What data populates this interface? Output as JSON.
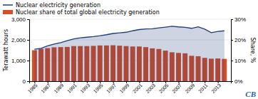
{
  "chart_data": {
    "type": "bar",
    "x": [
      1985,
      1986,
      1987,
      1988,
      1989,
      1990,
      1991,
      1992,
      1993,
      1994,
      1995,
      1996,
      1997,
      1998,
      1999,
      2000,
      2001,
      2002,
      2003,
      2004,
      2005,
      2006,
      2007,
      2008,
      2009,
      2010,
      2011,
      2012,
      2013,
      2014
    ],
    "series": [
      {
        "name": "Nuclear electricity generation",
        "type": "area",
        "color": "#1f3d7a",
        "values": [
          1550,
          1590,
          1710,
          1800,
          1870,
          1960,
          2050,
          2100,
          2130,
          2160,
          2200,
          2250,
          2310,
          2340,
          2370,
          2440,
          2500,
          2530,
          2540,
          2580,
          2620,
          2660,
          2630,
          2610,
          2560,
          2630,
          2520,
          2350,
          2410,
          2440
        ]
      },
      {
        "name": "Nuclear share of total global electricity generation",
        "type": "bar",
        "axis": "y2",
        "color": "#d44e28",
        "values": [
          15.0,
          15.7,
          16.0,
          16.4,
          16.5,
          16.6,
          17.0,
          17.0,
          17.0,
          17.1,
          17.3,
          17.3,
          17.4,
          17.2,
          17.0,
          16.8,
          16.8,
          16.5,
          15.9,
          15.6,
          14.8,
          14.0,
          13.7,
          13.5,
          12.3,
          12.1,
          11.3,
          10.9,
          11.0,
          10.8
        ]
      }
    ],
    "y_label": "Terawatt hours",
    "y2_label": "Share, %",
    "xlim": [
      1984.2,
      2015.0
    ],
    "xticks": [
      1985,
      1987,
      1989,
      1991,
      1993,
      1995,
      1997,
      1999,
      2001,
      2003,
      2005,
      2007,
      2009,
      2011,
      2013
    ],
    "ylim": [
      0,
      3000
    ],
    "yticks": [
      0,
      {
        "value": 1000,
        "label": "1,000"
      },
      {
        "value": 2000,
        "label": "2,000"
      },
      {
        "value": 3000,
        "label": "3,000"
      }
    ],
    "y2lim": [
      0,
      30
    ],
    "y2ticks": [
      {
        "value": 0,
        "label": "0%"
      },
      {
        "value": 10,
        "label": "10%"
      },
      {
        "value": 20,
        "label": "20%"
      },
      {
        "value": 30,
        "label": "30%"
      }
    ],
    "grid": true,
    "legend": "top-left",
    "annotations": [
      {
        "text": "CB",
        "color": "#1a5fb4"
      }
    ]
  }
}
